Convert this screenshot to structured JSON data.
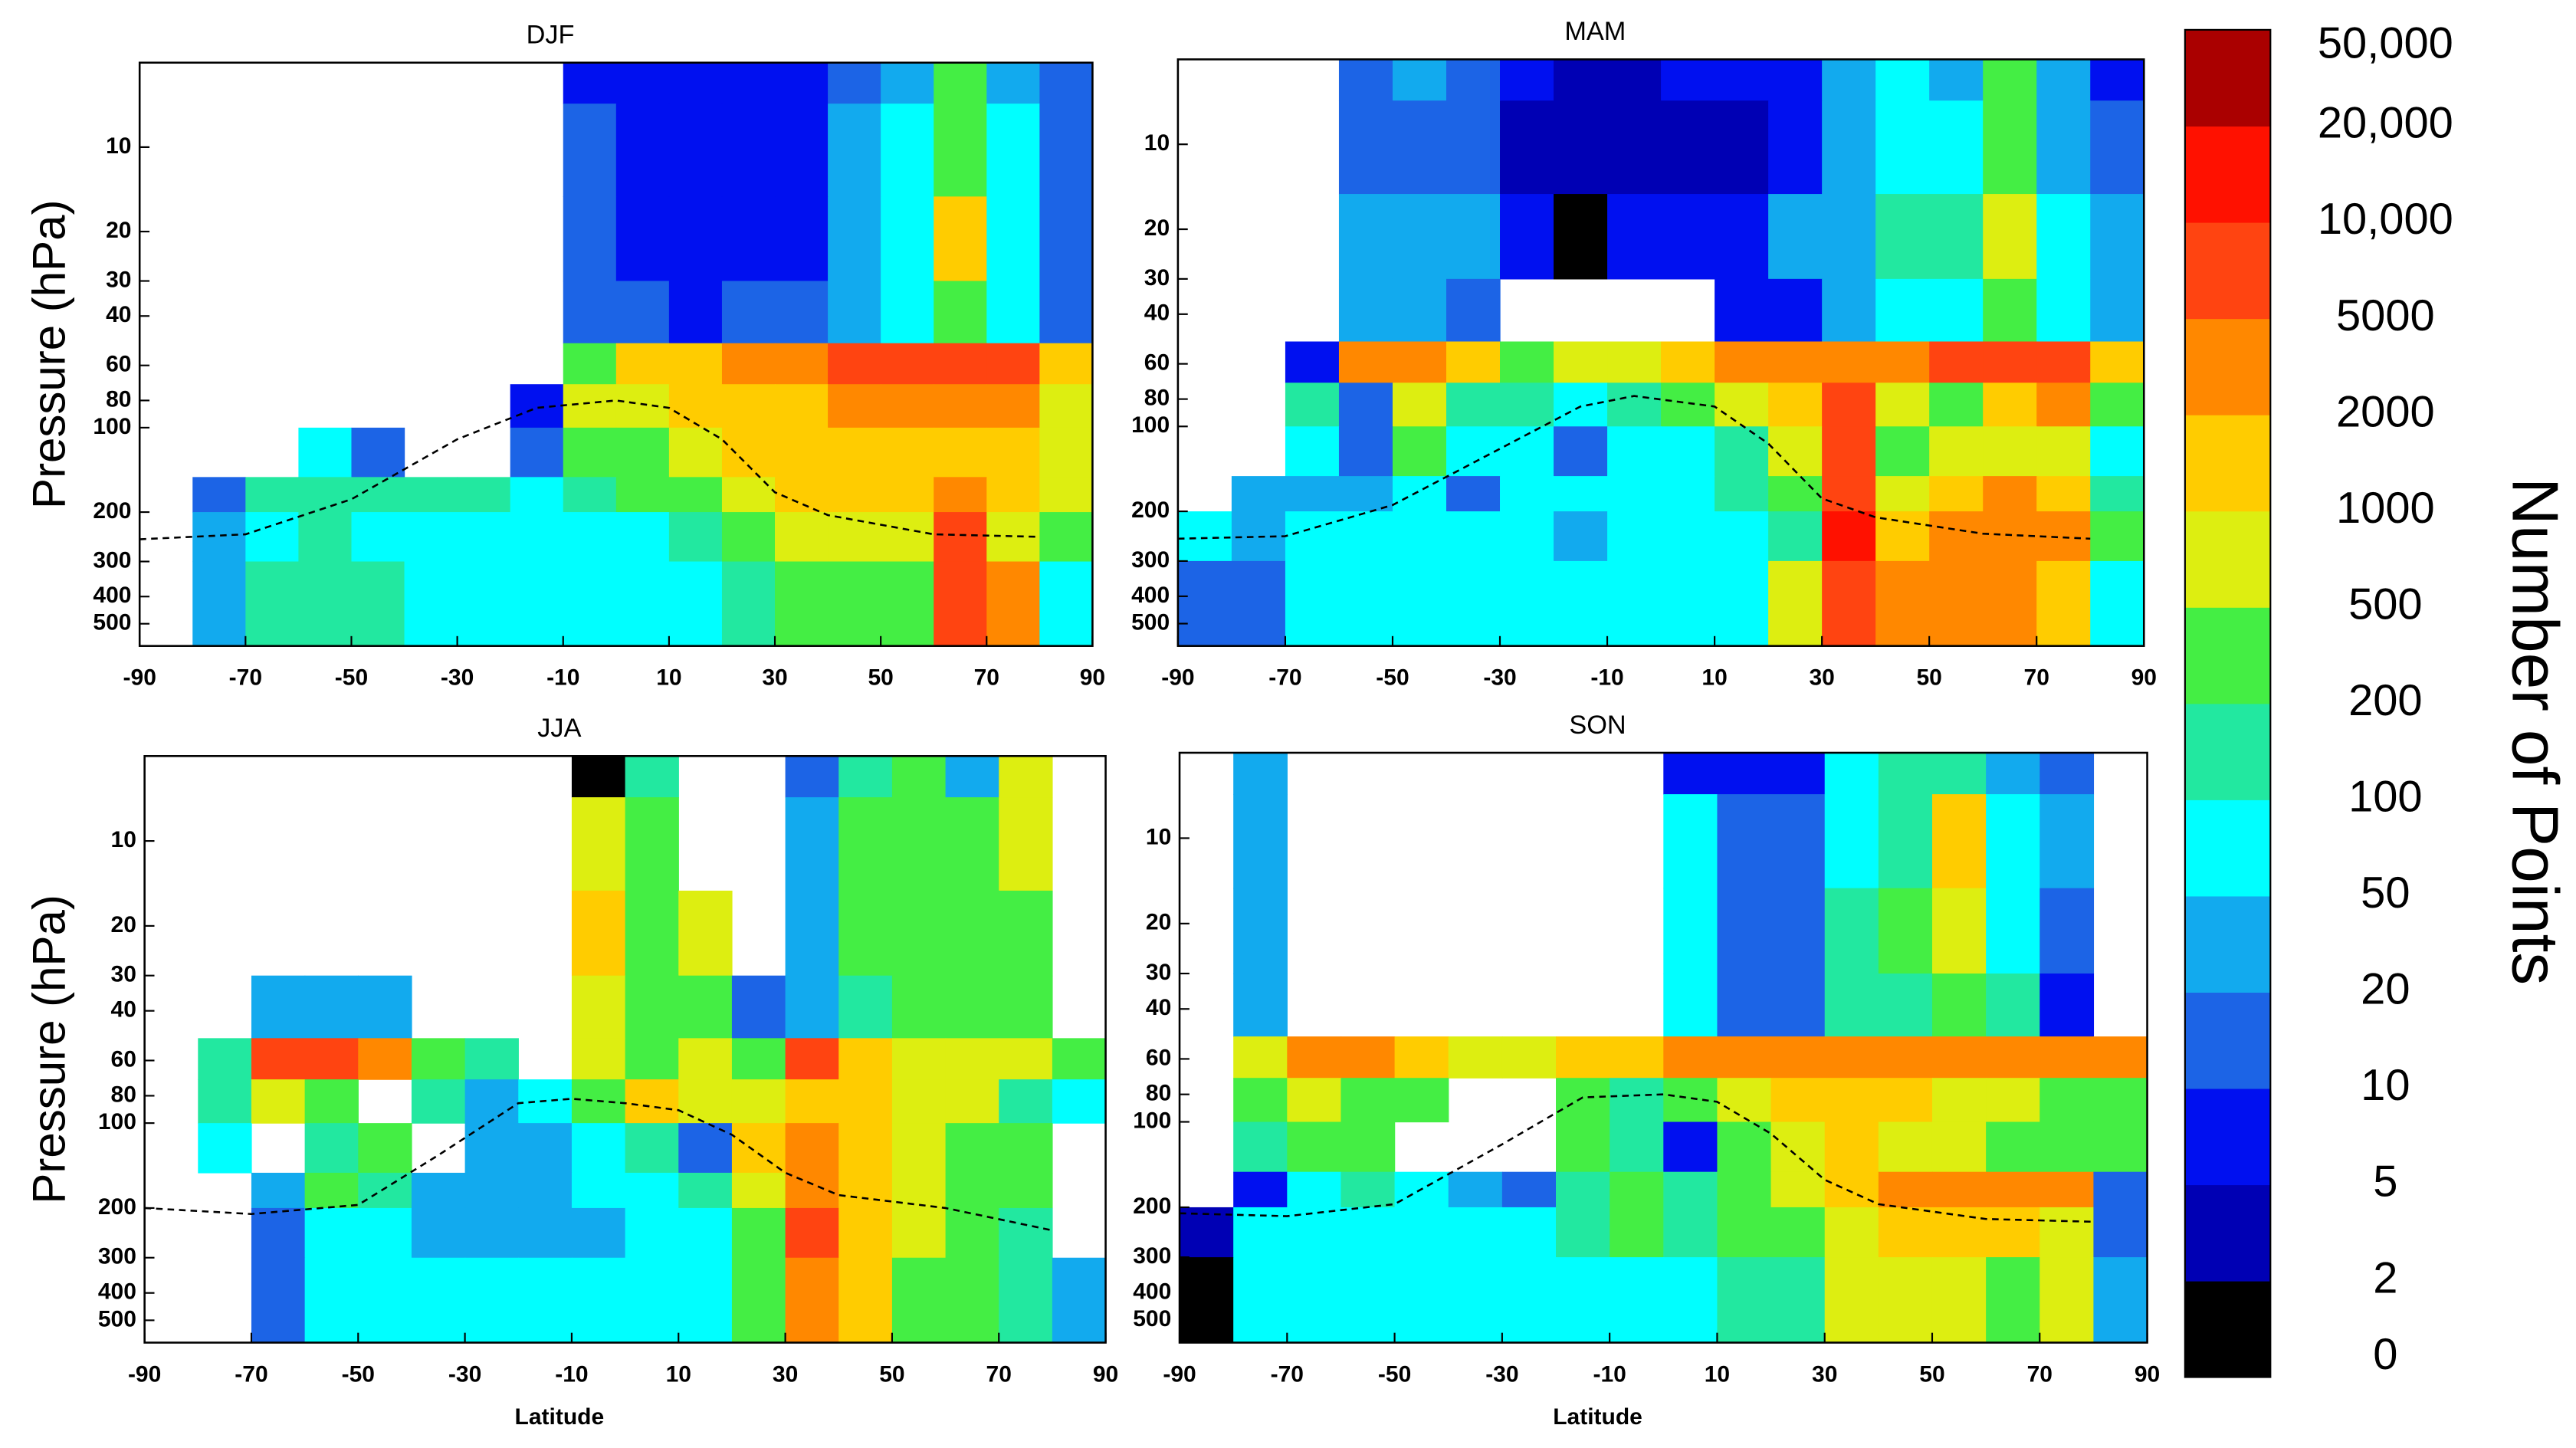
{
  "chart_data": [
    {
      "type": "heatmap",
      "title": "DJF",
      "y_label": "Pressure (hPa)",
      "x_bins": [
        -90,
        -80,
        -70,
        -60,
        -50,
        -40,
        -30,
        -20,
        -10,
        0,
        10,
        20,
        30,
        40,
        50,
        60,
        70,
        80,
        90
      ],
      "y_bins": [
        5,
        7,
        15,
        30,
        50,
        70,
        100,
        150,
        200,
        300,
        600
      ],
      "xlim": [
        -90,
        90
      ],
      "ylim": [
        5,
        600
      ],
      "log_y": true,
      "y_inverted": true,
      "xticks": [
        -90,
        -70,
        -50,
        -30,
        -10,
        10,
        30,
        50,
        70,
        90
      ],
      "yticks": [
        10,
        20,
        30,
        40,
        60,
        80,
        100,
        200,
        300,
        400,
        500
      ],
      "values": [
        [
          null,
          null,
          null,
          null,
          null,
          null,
          null,
          null,
          7,
          7,
          7,
          7,
          7,
          15,
          30,
          300,
          30,
          15
        ],
        [
          null,
          null,
          null,
          null,
          null,
          null,
          null,
          null,
          15,
          7,
          7,
          7,
          7,
          30,
          70,
          300,
          70,
          15
        ],
        [
          null,
          null,
          null,
          null,
          null,
          null,
          null,
          null,
          15,
          7,
          7,
          7,
          7,
          30,
          70,
          1500,
          70,
          15
        ],
        [
          null,
          null,
          null,
          null,
          null,
          null,
          null,
          null,
          15,
          15,
          7,
          15,
          15,
          30,
          70,
          300,
          70,
          15
        ],
        [
          null,
          null,
          null,
          null,
          null,
          null,
          null,
          null,
          300,
          1500,
          1500,
          3000,
          3000,
          7000,
          7000,
          7000,
          7000,
          1500
        ],
        [
          null,
          null,
          null,
          null,
          null,
          null,
          null,
          7,
          700,
          700,
          1500,
          1500,
          1500,
          3000,
          3000,
          3000,
          3000,
          700
        ],
        [
          null,
          null,
          null,
          70,
          15,
          null,
          null,
          15,
          300,
          300,
          700,
          1500,
          1500,
          1500,
          1500,
          1500,
          1500,
          700
        ],
        [
          null,
          15,
          150,
          150,
          150,
          150,
          150,
          70,
          150,
          300,
          300,
          700,
          1500,
          1500,
          1500,
          3000,
          1500,
          700
        ],
        [
          null,
          30,
          70,
          150,
          70,
          70,
          70,
          70,
          70,
          70,
          150,
          300,
          700,
          700,
          700,
          7000,
          700,
          300
        ],
        [
          null,
          30,
          150,
          150,
          150,
          70,
          70,
          70,
          70,
          70,
          70,
          150,
          300,
          300,
          300,
          7000,
          3000,
          70
        ]
      ],
      "tropopause": {
        "x": [
          -90,
          -70,
          -50,
          -30,
          -15,
          0,
          10,
          20,
          30,
          40,
          60,
          80
        ],
        "values": [
          250,
          240,
          180,
          110,
          85,
          80,
          85,
          110,
          170,
          205,
          240,
          245
        ]
      }
    },
    {
      "type": "heatmap",
      "title": "MAM",
      "x_bins": [
        -90,
        -80,
        -70,
        -60,
        -50,
        -40,
        -30,
        -20,
        -10,
        0,
        10,
        20,
        30,
        40,
        50,
        60,
        70,
        80,
        90
      ],
      "y_bins": [
        5,
        7,
        15,
        30,
        50,
        70,
        100,
        150,
        200,
        300,
        600
      ],
      "xlim": [
        -90,
        90
      ],
      "ylim": [
        5,
        600
      ],
      "log_y": true,
      "y_inverted": true,
      "xticks": [
        -90,
        -70,
        -50,
        -30,
        -10,
        10,
        30,
        50,
        70,
        90
      ],
      "yticks": [
        10,
        20,
        30,
        40,
        60,
        80,
        100,
        200,
        300,
        400,
        500
      ],
      "values": [
        [
          null,
          null,
          null,
          15,
          30,
          15,
          7,
          3,
          3,
          7,
          7,
          7,
          30,
          70,
          30,
          300,
          30,
          7
        ],
        [
          null,
          null,
          null,
          15,
          15,
          15,
          3,
          3,
          3,
          3,
          3,
          7,
          30,
          70,
          70,
          300,
          30,
          15
        ],
        [
          null,
          null,
          null,
          30,
          30,
          30,
          7,
          1,
          7,
          7,
          7,
          30,
          30,
          150,
          150,
          700,
          70,
          30
        ],
        [
          null,
          null,
          null,
          30,
          30,
          15,
          null,
          null,
          null,
          null,
          7,
          7,
          30,
          70,
          70,
          300,
          70,
          30
        ],
        [
          null,
          null,
          7,
          3000,
          3000,
          1500,
          300,
          700,
          700,
          1500,
          3000,
          3000,
          3000,
          3000,
          7000,
          7000,
          7000,
          1500
        ],
        [
          null,
          null,
          150,
          15,
          700,
          150,
          150,
          70,
          150,
          300,
          700,
          1500,
          7000,
          700,
          300,
          1500,
          3000,
          300
        ],
        [
          null,
          null,
          70,
          15,
          300,
          70,
          70,
          15,
          70,
          70,
          150,
          700,
          7000,
          300,
          700,
          700,
          700,
          70
        ],
        [
          null,
          30,
          30,
          30,
          70,
          15,
          70,
          70,
          70,
          70,
          150,
          300,
          7000,
          700,
          1500,
          3000,
          1500,
          150
        ],
        [
          70,
          30,
          70,
          70,
          70,
          70,
          70,
          30,
          70,
          70,
          70,
          150,
          15000,
          1500,
          3000,
          3000,
          3000,
          300
        ],
        [
          15,
          15,
          70,
          70,
          70,
          70,
          70,
          70,
          70,
          70,
          70,
          700,
          7000,
          3000,
          3000,
          3000,
          1500,
          70
        ]
      ],
      "tropopause": {
        "x": [
          -90,
          -70,
          -50,
          -30,
          -15,
          -5,
          10,
          20,
          30,
          40,
          60,
          80
        ],
        "values": [
          250,
          245,
          190,
          120,
          85,
          78,
          85,
          115,
          180,
          210,
          240,
          250
        ]
      }
    },
    {
      "type": "heatmap",
      "title": "JJA",
      "y_label": "Pressure (hPa)",
      "x_label": "Latitude",
      "x_bins": [
        -90,
        -80,
        -70,
        -60,
        -50,
        -40,
        -30,
        -20,
        -10,
        0,
        10,
        20,
        30,
        40,
        50,
        60,
        70,
        80,
        90
      ],
      "y_bins": [
        5,
        7,
        15,
        30,
        50,
        70,
        100,
        150,
        200,
        300,
        600
      ],
      "xlim": [
        -90,
        90
      ],
      "ylim": [
        5,
        600
      ],
      "log_y": true,
      "y_inverted": true,
      "xticks": [
        -90,
        -70,
        -50,
        -30,
        -10,
        10,
        30,
        50,
        70,
        90
      ],
      "yticks": [
        10,
        20,
        30,
        40,
        60,
        80,
        100,
        200,
        300,
        400,
        500
      ],
      "values": [
        [
          null,
          null,
          null,
          null,
          null,
          null,
          null,
          null,
          1,
          150,
          null,
          null,
          15,
          150,
          300,
          30,
          700,
          null
        ],
        [
          null,
          null,
          null,
          null,
          null,
          null,
          null,
          null,
          700,
          300,
          null,
          null,
          30,
          300,
          300,
          300,
          700,
          null
        ],
        [
          null,
          null,
          null,
          null,
          null,
          null,
          null,
          null,
          1500,
          300,
          700,
          null,
          30,
          300,
          300,
          300,
          300,
          null
        ],
        [
          null,
          null,
          30,
          30,
          30,
          null,
          null,
          null,
          700,
          300,
          300,
          15,
          30,
          150,
          300,
          300,
          300,
          null
        ],
        [
          null,
          150,
          7000,
          7000,
          3000,
          300,
          150,
          null,
          700,
          300,
          700,
          300,
          7000,
          1500,
          700,
          700,
          700,
          300
        ],
        [
          null,
          150,
          700,
          300,
          null,
          150,
          30,
          70,
          300,
          1500,
          700,
          700,
          1500,
          1500,
          700,
          700,
          150,
          70
        ],
        [
          null,
          70,
          null,
          150,
          300,
          null,
          30,
          30,
          70,
          150,
          15,
          1500,
          3000,
          1500,
          700,
          300,
          300,
          null
        ],
        [
          null,
          null,
          30,
          300,
          150,
          30,
          30,
          30,
          70,
          70,
          150,
          700,
          3000,
          1500,
          700,
          300,
          300,
          null
        ],
        [
          null,
          null,
          15,
          70,
          70,
          30,
          30,
          30,
          30,
          70,
          70,
          300,
          7000,
          1500,
          700,
          300,
          150,
          null
        ],
        [
          null,
          null,
          15,
          70,
          70,
          70,
          70,
          70,
          70,
          70,
          70,
          300,
          3000,
          1500,
          300,
          300,
          150,
          30
        ]
      ],
      "tropopause": {
        "x": [
          -90,
          -70,
          -50,
          -35,
          -20,
          -10,
          0,
          10,
          20,
          30,
          40,
          60,
          80
        ],
        "values": [
          200,
          210,
          195,
          130,
          85,
          82,
          85,
          90,
          110,
          150,
          180,
          200,
          240
        ]
      }
    },
    {
      "type": "heatmap",
      "title": "SON",
      "x_label": "Latitude",
      "x_bins": [
        -90,
        -80,
        -70,
        -60,
        -50,
        -40,
        -30,
        -20,
        -10,
        0,
        10,
        20,
        30,
        40,
        50,
        60,
        70,
        80,
        90
      ],
      "y_bins": [
        5,
        7,
        15,
        30,
        50,
        70,
        100,
        150,
        200,
        300,
        600
      ],
      "xlim": [
        -90,
        90
      ],
      "ylim": [
        5,
        600
      ],
      "log_y": true,
      "y_inverted": true,
      "xticks": [
        -90,
        -70,
        -50,
        -30,
        -10,
        10,
        30,
        50,
        70,
        90
      ],
      "yticks": [
        10,
        20,
        30,
        40,
        60,
        80,
        100,
        200,
        300,
        400,
        500
      ],
      "values": [
        [
          null,
          30,
          null,
          null,
          null,
          null,
          null,
          null,
          null,
          7,
          7,
          7,
          70,
          150,
          150,
          30,
          15,
          null
        ],
        [
          null,
          30,
          null,
          null,
          null,
          null,
          null,
          null,
          null,
          70,
          15,
          15,
          70,
          150,
          1500,
          70,
          30,
          null
        ],
        [
          null,
          30,
          null,
          null,
          null,
          null,
          null,
          null,
          null,
          70,
          15,
          15,
          150,
          300,
          700,
          70,
          15,
          null
        ],
        [
          null,
          30,
          null,
          null,
          null,
          null,
          null,
          null,
          null,
          70,
          15,
          15,
          150,
          150,
          300,
          150,
          7,
          null
        ],
        [
          null,
          700,
          3000,
          3000,
          1500,
          700,
          700,
          1500,
          1500,
          3000,
          3000,
          3000,
          3000,
          3000,
          3000,
          3000,
          3000,
          3000
        ],
        [
          null,
          300,
          700,
          300,
          300,
          null,
          null,
          300,
          150,
          300,
          700,
          1500,
          1500,
          1500,
          700,
          700,
          300,
          300
        ],
        [
          null,
          150,
          300,
          300,
          null,
          null,
          null,
          300,
          150,
          7,
          300,
          700,
          1500,
          700,
          700,
          300,
          300,
          300
        ],
        [
          null,
          7,
          70,
          150,
          70,
          30,
          15,
          150,
          300,
          150,
          300,
          700,
          1500,
          3000,
          3000,
          3000,
          3000,
          15
        ],
        [
          3,
          70,
          70,
          70,
          70,
          70,
          70,
          150,
          300,
          150,
          300,
          300,
          700,
          1500,
          1500,
          1500,
          700,
          15
        ],
        [
          1,
          70,
          70,
          70,
          70,
          70,
          70,
          70,
          70,
          70,
          150,
          150,
          700,
          700,
          700,
          300,
          700,
          30
        ]
      ],
      "tropopause": {
        "x": [
          -90,
          -70,
          -50,
          -30,
          -15,
          0,
          10,
          20,
          30,
          40,
          60,
          80
        ],
        "values": [
          210,
          215,
          195,
          120,
          82,
          80,
          85,
          110,
          160,
          195,
          220,
          225
        ]
      }
    }
  ],
  "colorbar": {
    "label": "Number of Points",
    "levels": [
      0,
      2,
      5,
      10,
      20,
      50,
      100,
      200,
      500,
      1000,
      2000,
      5000,
      {
        "value": 10000,
        "label": "10,000"
      },
      {
        "value": 20000,
        "label": "20,000"
      },
      {
        "value": 50000,
        "label": "50,000"
      }
    ],
    "colors": [
      "#000000",
      "#0000b4",
      "#0010f0",
      "#1c64e6",
      "#12aaee",
      "#00ffff",
      "#22e8a0",
      "#44ee44",
      "#ddee11",
      "#ffcc00",
      "#ff8800",
      "#ff4411",
      "#ff1100",
      "#aa0000"
    ]
  }
}
